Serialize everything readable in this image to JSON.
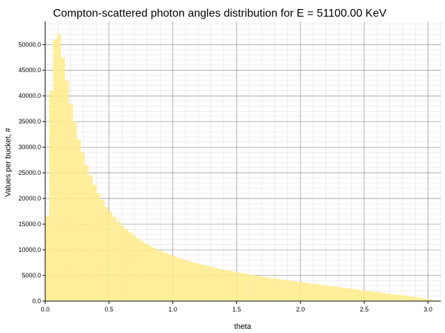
{
  "chart_data": {
    "type": "bar",
    "title": "Compton-scattered photon angles distribution for E = 51100.00 KeV",
    "xlabel": "theta",
    "ylabel": "Values per bucket, #",
    "xlim": [
      0.0,
      3.1
    ],
    "ylim": [
      0,
      54500
    ],
    "x_ticks": [
      "0.0",
      "0.5",
      "1.0",
      "1.5",
      "2.0",
      "2.5",
      "3.0"
    ],
    "y_ticks": [
      "0.0",
      "5000.0",
      "10000.0",
      "15000.0",
      "20000.0",
      "25000.0",
      "30000.0",
      "35000.0",
      "40000.0",
      "45000.0",
      "50000.0"
    ],
    "grid": true,
    "bar_color": "#ffec8a",
    "bin_width": 0.031,
    "x": [
      0.0155,
      0.0465,
      0.0775,
      0.1085,
      0.1395,
      0.1705,
      0.2015,
      0.2325,
      0.2635,
      0.2945,
      0.3255,
      0.3565,
      0.3875,
      0.4185,
      0.4495,
      0.4805,
      0.5115,
      0.5425,
      0.5735,
      0.6045,
      0.6355,
      0.6665,
      0.6975,
      0.7285,
      0.7595,
      0.7905,
      0.8215,
      0.8525,
      0.8835,
      0.9145,
      0.9455,
      0.9765,
      1.0075,
      1.0385,
      1.0695,
      1.1005,
      1.1315,
      1.1625,
      1.1935,
      1.2245,
      1.2555,
      1.2865,
      1.3175,
      1.3485,
      1.3795,
      1.4105,
      1.4415,
      1.4725,
      1.5035,
      1.5345,
      1.5655,
      1.5965,
      1.6275,
      1.6585,
      1.6895,
      1.7205,
      1.7515,
      1.7825,
      1.8135,
      1.8445,
      1.8755,
      1.9065,
      1.9375,
      1.9685,
      1.9995,
      2.0305,
      2.0615,
      2.0925,
      2.1235,
      2.1545,
      2.1855,
      2.2165,
      2.2475,
      2.2785,
      2.3095,
      2.3405,
      2.3715,
      2.4025,
      2.4335,
      2.4645,
      2.4955,
      2.5265,
      2.5575,
      2.5885,
      2.6195,
      2.6505,
      2.6815,
      2.7125,
      2.7435,
      2.7745,
      2.8055,
      2.8365,
      2.8675,
      2.8985,
      2.9295,
      2.9605,
      2.9915,
      3.0225,
      3.0535,
      3.0845
    ],
    "values": [
      16500,
      41000,
      51000,
      52000,
      47500,
      43000,
      38500,
      35000,
      31500,
      29000,
      26500,
      24500,
      22700,
      21000,
      19700,
      18400,
      17300,
      16400,
      15500,
      14700,
      14000,
      13400,
      12800,
      12200,
      11700,
      11200,
      10800,
      10400,
      10000,
      9700,
      9400,
      9100,
      8800,
      8500,
      8250,
      8000,
      7800,
      7550,
      7350,
      7150,
      6950,
      6750,
      6600,
      6400,
      6250,
      6100,
      5950,
      5800,
      5650,
      5500,
      5350,
      5200,
      5100,
      4950,
      4800,
      4700,
      4600,
      4450,
      4350,
      4250,
      4150,
      4050,
      3900,
      3800,
      3700,
      3600,
      3500,
      3400,
      3300,
      3200,
      3100,
      3000,
      2900,
      2800,
      2700,
      2600,
      2500,
      2400,
      2300,
      2200,
      2100,
      2000,
      1900,
      1800,
      1700,
      1600,
      1500,
      1400,
      1300,
      1200,
      1100,
      1000,
      900,
      800,
      700,
      550,
      420,
      300,
      180,
      80
    ]
  }
}
